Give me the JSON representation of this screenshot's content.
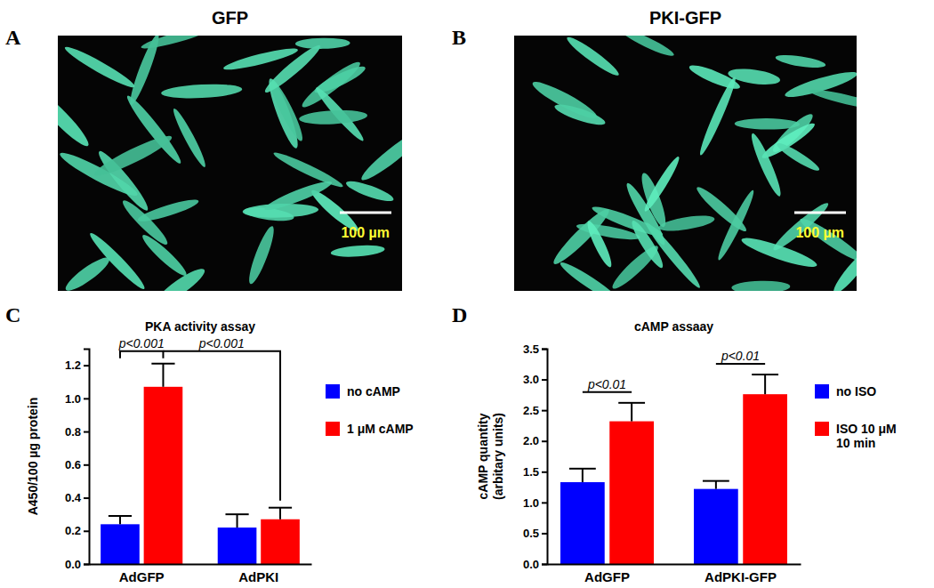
{
  "panel_labels": [
    "A",
    "B",
    "C",
    "D"
  ],
  "images": [
    {
      "title": "GFP",
      "scale_bar": "100 µm"
    },
    {
      "title": "PKI-GFP",
      "scale_bar": "100 µm"
    }
  ],
  "chart_data": [
    {
      "type": "bar",
      "title": "PKA activity assay",
      "ylabel": "A450/100 µg protein",
      "categories": [
        "AdGFP",
        "AdPKI"
      ],
      "series": [
        {
          "name": "no cAMP",
          "color": "#0000ff",
          "values": [
            0.24,
            0.22
          ],
          "errors": [
            0.05,
            0.08
          ]
        },
        {
          "name": "1 μM cAMP",
          "color": "#ff0000",
          "values": [
            1.07,
            0.27
          ],
          "errors": [
            0.14,
            0.07
          ]
        }
      ],
      "ylim": [
        0,
        1.3
      ],
      "yticks": [
        {
          "value": 0,
          "label": "0.0"
        },
        0.2,
        0.4,
        0.6,
        0.8,
        {
          "value": 1,
          "label": "1.0"
        },
        1.2
      ],
      "legend": "right",
      "annotations": [
        "p<0.001",
        "p<0.001"
      ]
    },
    {
      "type": "bar",
      "title": "cAMP assaay",
      "ylabel": [
        "cAMP quantity",
        "(arbitary units)"
      ],
      "categories": [
        "AdGFP",
        "AdPKI-GFP"
      ],
      "series": [
        {
          "name": "no ISO",
          "color": "#0000ff",
          "values": [
            1.33,
            1.22
          ],
          "errors": [
            0.22,
            0.13
          ]
        },
        {
          "name": "ISO 10 μM 10 min",
          "color": "#ff0000",
          "values": [
            2.32,
            2.76
          ],
          "errors": [
            0.3,
            0.32
          ]
        }
      ],
      "ylim": [
        0,
        3.5
      ],
      "yticks": [
        {
          "value": 0,
          "label": "0.0"
        },
        0.5,
        {
          "value": 1,
          "label": "1.0"
        },
        1.5,
        {
          "value": 2,
          "label": "2.0"
        },
        2.5,
        {
          "value": 3,
          "label": "3.0"
        },
        3.5
      ],
      "legend": "right",
      "annotations": [
        "p<0.01",
        "p<0.01"
      ]
    }
  ]
}
